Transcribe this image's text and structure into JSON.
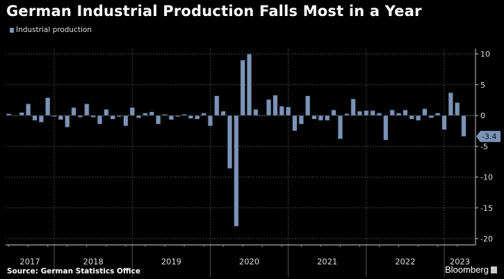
{
  "chart_data": {
    "type": "bar",
    "title": "German Industrial Production Falls Most in a Year",
    "source": "Source: German Statistics Office",
    "brand": "Bloomberg",
    "legend": {
      "position": "top-left",
      "entries": [
        "Industrial production"
      ]
    },
    "series": [
      {
        "name": "Industrial production",
        "color": "#7b93b5",
        "start": "2017-05",
        "frequency": "monthly",
        "values": [
          0.3,
          -0.1,
          0.5,
          1.9,
          -0.8,
          -1.1,
          2.9,
          -0.2,
          -0.7,
          -1.9,
          1.3,
          -0.3,
          1.9,
          -0.3,
          -1.4,
          1.0,
          -0.6,
          -0.2,
          -1.7,
          1.3,
          -0.4,
          0.4,
          0.6,
          -1.4,
          0.2,
          -0.7,
          -0.2,
          0.2,
          -0.5,
          -0.6,
          0.4,
          -1.7,
          3.2,
          0.7,
          -8.6,
          -18.0,
          9.0,
          10.0,
          1.0,
          -0.1,
          2.6,
          3.3,
          1.5,
          1.4,
          -2.5,
          -1.4,
          3.2,
          -0.6,
          -0.8,
          -0.8,
          0.9,
          -3.8,
          0.3,
          2.7,
          0.7,
          0.8,
          0.8,
          0.4,
          -4.0,
          0.9,
          0.4,
          0.9,
          -0.6,
          -0.8,
          1.1,
          -0.4,
          0.4,
          -2.3,
          3.7,
          2.1,
          -3.4
        ]
      }
    ],
    "x_tick_labels": [
      "2017",
      "2018",
      "2019",
      "2020",
      "2021",
      "2022",
      "2023"
    ],
    "y_tick_labels": [
      "10",
      "5",
      "0",
      "-5",
      "-10",
      "-15",
      "-20"
    ],
    "y_ticks": [
      10,
      5,
      0,
      -5,
      -10,
      -15,
      -20
    ],
    "ylim": [
      -21,
      11.2
    ],
    "y_axis_side": "right",
    "last_value_label": "-3.4",
    "grid": true,
    "background": "#000000"
  }
}
